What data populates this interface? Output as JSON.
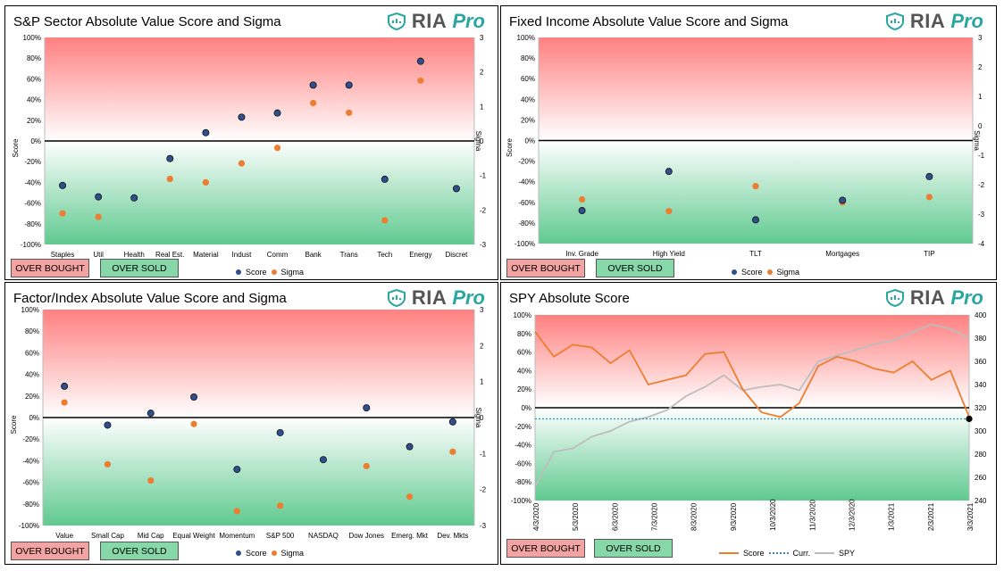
{
  "common": {
    "over_bought": "OVER BOUGHT",
    "over_sold": "OVER SOLD",
    "logo_text": "RIA",
    "logo_pro": "Pro",
    "score_label": "Score",
    "sigma_label": "Sigma",
    "colors": {
      "score": "#2f4f8f",
      "sigma": "#ed7d31",
      "over_bought": "#f4a3a3",
      "over_sold": "#86d8a8",
      "spy": "#bdbdbd",
      "curr": "#2e8fb5",
      "logo_accent": "#2aa6a0"
    }
  },
  "chart_data": [
    {
      "type": "scatter",
      "title": "S&P Sector Absolute Value Score and Sigma",
      "ylabel": "Score",
      "y2label": "Sigma",
      "ylim": [
        -100,
        100
      ],
      "y2lim": [
        -3,
        3
      ],
      "yticks": [
        "100%",
        "80%",
        "60%",
        "40%",
        "20%",
        "0%",
        "-20%",
        "-40%",
        "-60%",
        "-80%",
        "-100%"
      ],
      "y2ticks": [
        "3",
        "2",
        "1",
        "0",
        "-1",
        "-2",
        "-3"
      ],
      "categories": [
        "Staples",
        "Util",
        "Health",
        "Real Est.",
        "Material",
        "Indust",
        "Comm",
        "Bank",
        "Trans",
        "Tech",
        "Energy",
        "Discret"
      ],
      "series": [
        {
          "name": "Score",
          "axis": "left",
          "values": [
            -43,
            -54,
            -55,
            -17,
            8,
            23,
            27,
            54,
            54,
            -37,
            77,
            -46
          ]
        },
        {
          "name": "Sigma",
          "axis": "right",
          "values": [
            -2.1,
            -2.2,
            null,
            -1.1,
            -1.2,
            -0.65,
            -0.2,
            1.1,
            0.82,
            -2.3,
            1.75,
            null
          ]
        }
      ],
      "legend": "bottom"
    },
    {
      "type": "scatter",
      "title": "Fixed Income Absolute Value Score and Sigma",
      "ylabel": "Score",
      "y2label": "Sigma",
      "ylim": [
        -100,
        100
      ],
      "y2lim": [
        -4,
        3
      ],
      "yticks": [
        "100%",
        "80%",
        "60%",
        "40%",
        "20%",
        "0%",
        "-20%",
        "-40%",
        "-60%",
        "-80%",
        "-100%"
      ],
      "y2ticks": [
        "3",
        "2",
        "1",
        "0",
        "-1",
        "-2",
        "-3",
        "-4"
      ],
      "categories": [
        "Inv. Grade",
        "High Yield",
        "TLT",
        "Mortgages",
        "TIP"
      ],
      "series": [
        {
          "name": "Score",
          "axis": "left",
          "values": [
            -68,
            -30,
            -77,
            -58,
            -35
          ]
        },
        {
          "name": "Sigma",
          "axis": "right",
          "values": [
            -2.5,
            -2.9,
            -2.05,
            -2.6,
            -2.42
          ]
        }
      ],
      "legend": "bottom"
    },
    {
      "type": "scatter",
      "title": "Factor/Index Absolute Value Score and Sigma",
      "ylabel": "Score",
      "y2label": "Sigma",
      "ylim": [
        -100,
        100
      ],
      "y2lim": [
        -3,
        3
      ],
      "yticks": [
        "100%",
        "80%",
        "60%",
        "40%",
        "20%",
        "0%",
        "-20%",
        "-40%",
        "-60%",
        "-80%",
        "-100%"
      ],
      "y2ticks": [
        "3",
        "2",
        "1",
        "0",
        "-1",
        "-2",
        "-3"
      ],
      "categories": [
        "Value",
        "Small Cap",
        "Mid Cap",
        "Equal Weight",
        "Momentum",
        "S&P 500",
        "NASDAQ",
        "Dow Jones",
        "Emerg. Mkt",
        "Dev. Mkts"
      ],
      "series": [
        {
          "name": "Score",
          "axis": "left",
          "values": [
            29,
            -7,
            4,
            19,
            -48,
            -14,
            -39,
            9,
            -27,
            -4
          ]
        },
        {
          "name": "Sigma",
          "axis": "right",
          "values": [
            0.42,
            -1.3,
            -1.75,
            -0.18,
            -2.6,
            -2.45,
            null,
            -1.35,
            -2.2,
            -0.95
          ]
        }
      ],
      "legend": "bottom"
    },
    {
      "type": "line",
      "title": "SPY Absolute Score",
      "ylim": [
        -100,
        100
      ],
      "y2lim": [
        240,
        400
      ],
      "yticks": [
        "100%",
        "80%",
        "60%",
        "40%",
        "20%",
        "0%",
        "-20%",
        "-40%",
        "-60%",
        "-80%",
        "-100%"
      ],
      "y2ticks": [
        "400",
        "380",
        "360",
        "340",
        "320",
        "300",
        "280",
        "260",
        "240"
      ],
      "x_labels": [
        "4/3/2020",
        "5/3/2020",
        "6/3/2020",
        "7/3/2020",
        "8/3/2020",
        "9/3/2020",
        "10/3/2020",
        "11/3/2020",
        "12/3/2020",
        "1/3/2021",
        "2/3/2021",
        "3/3/2021"
      ],
      "x": [
        "4/3/2020",
        "4/18/2020",
        "5/3/2020",
        "5/18/2020",
        "6/3/2020",
        "6/18/2020",
        "7/3/2020",
        "7/18/2020",
        "8/3/2020",
        "8/18/2020",
        "9/3/2020",
        "9/18/2020",
        "10/3/2020",
        "10/18/2020",
        "11/3/2020",
        "11/18/2020",
        "12/3/2020",
        "12/18/2020",
        "1/3/2021",
        "1/18/2021",
        "2/3/2021",
        "2/18/2021",
        "3/3/2021",
        "3/18/2021"
      ],
      "series": [
        {
          "name": "Score",
          "axis": "left",
          "values": [
            82,
            55,
            68,
            65,
            48,
            62,
            25,
            30,
            35,
            58,
            60,
            20,
            -5,
            -10,
            5,
            45,
            55,
            50,
            42,
            38,
            50,
            30,
            40,
            -10
          ]
        },
        {
          "name": "Curr.",
          "axis": "left",
          "values": [
            -12,
            -12,
            -12,
            -12,
            -12,
            -12,
            -12,
            -12,
            -12,
            -12,
            -12,
            -12,
            -12,
            -12,
            -12,
            -12,
            -12,
            -12,
            -12,
            -12,
            -12,
            -12,
            -12,
            -12
          ]
        },
        {
          "name": "SPY",
          "axis": "right",
          "values": [
            252,
            282,
            285,
            295,
            300,
            308,
            312,
            318,
            330,
            338,
            348,
            335,
            338,
            340,
            335,
            360,
            365,
            370,
            375,
            378,
            385,
            392,
            388,
            380
          ]
        }
      ],
      "legend": "bottom"
    }
  ]
}
